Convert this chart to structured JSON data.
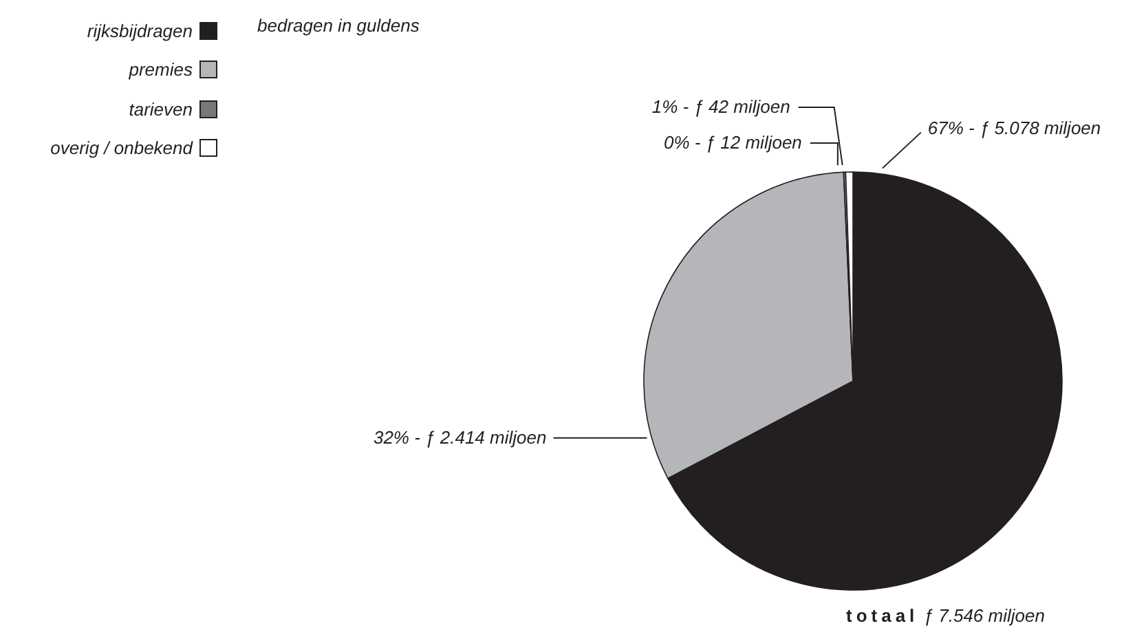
{
  "chart_data": {
    "type": "pie",
    "categories": [
      "rijksbijdragen",
      "premies",
      "tarieven",
      "overig / onbekend"
    ],
    "values": [
      5078,
      2414,
      12,
      42
    ],
    "colors": [
      "#231f20",
      "#b5b6b9",
      "#77787b",
      "#ffffff"
    ],
    "value_labels": [
      "67% - ƒ 5.078 miljoen",
      "32% - ƒ 2.414 miljoen",
      "0% - ƒ 12 miljoen",
      "1% - ƒ 42 miljoen"
    ],
    "legend": "top left",
    "annotations": [
      "bedragen in guldens",
      "totaal ƒ 7.546 miljoen"
    ]
  }
}
